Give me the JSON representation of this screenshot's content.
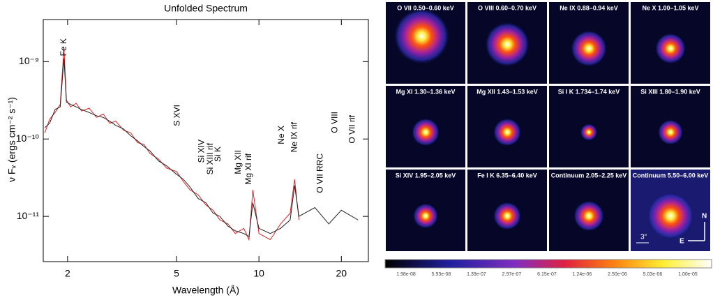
{
  "chart_data": {
    "type": "line",
    "title": "Unfolded Spectrum",
    "xlabel": "Wavelength (Å)",
    "ylabel": "ν Fᵥ (ergs cm⁻² s⁻¹)",
    "xscale": "log",
    "yscale": "log",
    "xlim": [
      1.63,
      25.1
    ],
    "ylim": [
      2.6e-12,
      3.5e-09
    ],
    "xticks": [
      2,
      5,
      10,
      20
    ],
    "yticks": [
      {
        "value": 1e-11,
        "label": "10⁻¹¹"
      },
      {
        "value": 1e-10,
        "label": "10⁻¹⁰"
      },
      {
        "value": 1e-09,
        "label": "10⁻⁹"
      }
    ],
    "x": [
      1.65,
      1.72,
      1.8,
      1.88,
      1.94,
      1.98,
      2.05,
      2.15,
      2.25,
      2.4,
      2.55,
      2.7,
      2.85,
      3.0,
      3.2,
      3.4,
      3.6,
      3.8,
      4.0,
      4.3,
      4.6,
      5.0,
      5.3,
      5.6,
      6.0,
      6.4,
      6.8,
      7.2,
      7.7,
      8.2,
      8.8,
      9.2,
      9.5,
      10,
      11,
      12,
      13,
      13.5,
      14,
      16,
      18,
      20,
      23
    ],
    "series": [
      {
        "color": "#e02020",
        "values": [
          1.2e-10,
          1.8e-10,
          2.2e-10,
          2.8e-10,
          1.5e-09,
          3.2e-10,
          2.6e-10,
          2.9e-10,
          2.3e-10,
          2.5e-10,
          1.9e-10,
          2.1e-10,
          1.6e-10,
          1.7e-10,
          1.3e-10,
          1.2e-10,
          9e-11,
          8.5e-11,
          6.5e-11,
          5.5e-11,
          4.2e-11,
          3.8e-11,
          2.8e-11,
          2.2e-11,
          1.9e-11,
          1.4e-11,
          1.2e-11,
          9e-12,
          8e-12,
          6e-12,
          7e-12,
          5e-12,
          2.2e-11,
          6e-12,
          5e-12,
          8e-12,
          1.1e-11,
          3e-11,
          9e-12,
          null,
          null,
          null,
          null
        ]
      },
      {
        "color": "#222222",
        "values": [
          1.4e-10,
          1.6e-10,
          2.4e-10,
          2.6e-10,
          1.1e-09,
          3e-10,
          2.8e-10,
          2.6e-10,
          2.4e-10,
          2.2e-10,
          2e-10,
          1.9e-10,
          1.7e-10,
          1.5e-10,
          1.35e-10,
          1.1e-10,
          9.5e-11,
          8e-11,
          7e-11,
          5.2e-11,
          4.5e-11,
          3.5e-11,
          3e-11,
          2.4e-11,
          1.7e-11,
          1.5e-11,
          1.1e-11,
          1e-11,
          7.5e-12,
          6.5e-12,
          6e-12,
          5.5e-12,
          1.5e-11,
          7e-12,
          6e-12,
          7e-12,
          9e-12,
          2.5e-11,
          1e-11,
          1.3e-11,
          8e-12,
          1.2e-11,
          9e-12
        ]
      }
    ],
    "annotations": [
      {
        "text": "Fe K",
        "x": 1.94
      },
      {
        "text": "S XVI",
        "x": 5.04
      },
      {
        "text": "Si XIV",
        "x": 6.18
      },
      {
        "text": "Si XIII rif",
        "x": 6.65
      },
      {
        "text": "Si K",
        "x": 7.1
      },
      {
        "text": "Mg XII",
        "x": 8.42
      },
      {
        "text": "Mg XI rif",
        "x": 9.2
      },
      {
        "text": "Ne X",
        "x": 12.1
      },
      {
        "text": "Ne IX rif",
        "x": 13.5
      },
      {
        "text": "O VII RRC",
        "x": 16.8
      },
      {
        "text": "O VIII",
        "x": 19.0
      },
      {
        "text": "O VII rif",
        "x": 22.0
      }
    ]
  },
  "images": {
    "panels": [
      "O VII 0.50–0.60 keV",
      "O VIII 0.60–0.70 keV",
      "Ne IX 0.88–0.94 keV",
      "Ne X 1.00–1.05 keV",
      "Mg XI 1.30–1.36 keV",
      "Mg XII 1.43–1.53 keV",
      "Si I K 1.734–1.74 keV",
      "Si XIII 1.80–1.90 keV",
      "Si XIV 1.95–2.05 keV",
      "Fe I  K 6.35–6.40 keV",
      "Continuum 2.05–2.25 keV",
      "Continuum 5.50–6.00 keV"
    ],
    "scale_label": "3″",
    "north": "N",
    "east": "E",
    "colorbar_labels": [
      "1.98e-08",
      "5.93e-08",
      "1.39e-07",
      "2.97e-07",
      "6.15e-07",
      "1.24e-06",
      "2.50e-06",
      "5.03e-06",
      "1.00e-05"
    ]
  }
}
